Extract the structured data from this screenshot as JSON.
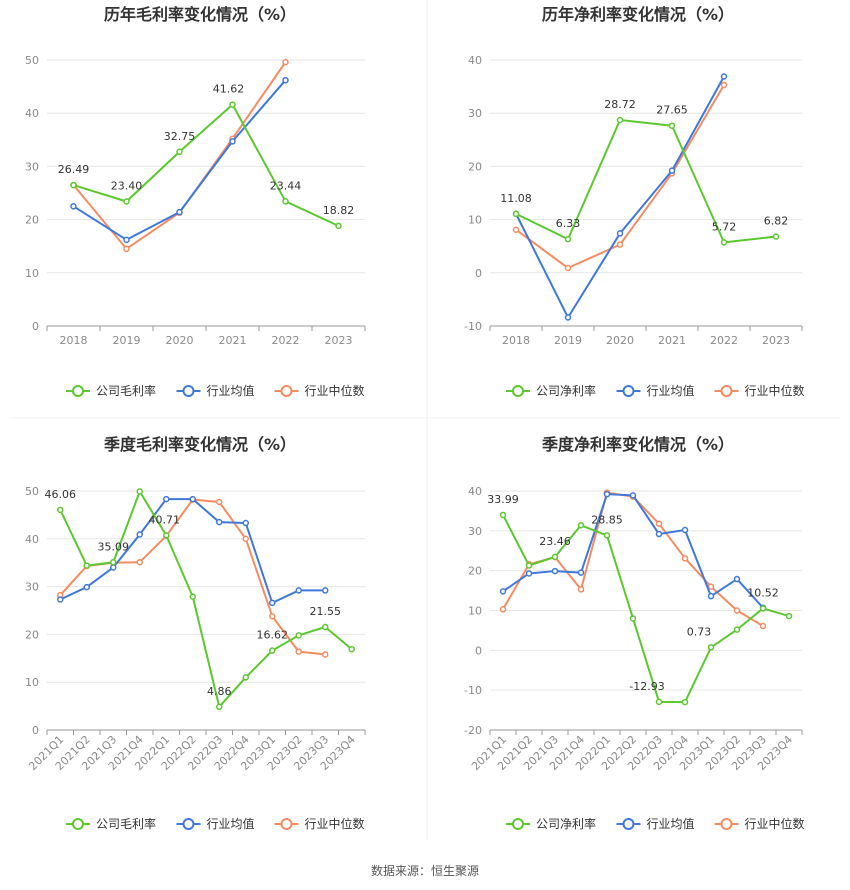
{
  "colors": {
    "company": "#5cc72f",
    "industry_avg": "#3f78d9",
    "industry_median": "#f58b61",
    "grid": "#e6e6e6",
    "axis": "#999999",
    "divider": "#e8e8e8"
  },
  "source": "数据来源：恒生聚源",
  "chart_data": [
    {
      "type": "line",
      "title": "历年毛利率变化情况（%）",
      "categories": [
        "2018",
        "2019",
        "2020",
        "2021",
        "2022",
        "2023"
      ],
      "ylim": [
        0,
        50
      ],
      "yticks": [
        0,
        10,
        20,
        30,
        40,
        50
      ],
      "legend": "bottom",
      "series": [
        {
          "name": "公司毛利率",
          "values": [
            26.49,
            23.4,
            32.75,
            41.62,
            23.44,
            18.82
          ]
        },
        {
          "name": "行业均值",
          "values": [
            22.5,
            16.2,
            21.4,
            34.7,
            46.2,
            null
          ]
        },
        {
          "name": "行业中位数",
          "values": [
            26.5,
            14.5,
            21.3,
            35.2,
            49.6,
            null
          ]
        }
      ],
      "data_labels": [
        {
          "i": 0,
          "text": "26.49"
        },
        {
          "i": 1,
          "text": "23.40"
        },
        {
          "i": 2,
          "text": "32.75"
        },
        {
          "i": 3,
          "text": "41.62"
        },
        {
          "i": 4,
          "text": "23.44"
        },
        {
          "i": 5,
          "text": "18.82"
        }
      ]
    },
    {
      "type": "line",
      "title": "历年净利率变化情况（%）",
      "categories": [
        "2018",
        "2019",
        "2020",
        "2021",
        "2022",
        "2023"
      ],
      "ylim": [
        -10,
        40
      ],
      "yticks": [
        -10,
        0,
        10,
        20,
        30,
        40
      ],
      "legend": "bottom",
      "series": [
        {
          "name": "公司净利率",
          "values": [
            11.08,
            6.33,
            28.72,
            27.65,
            5.72,
            6.82
          ]
        },
        {
          "name": "行业均值",
          "values": [
            11.1,
            -8.4,
            7.4,
            19.2,
            36.9,
            null
          ]
        },
        {
          "name": "行业中位数",
          "values": [
            8.1,
            0.9,
            5.3,
            18.7,
            35.3,
            null
          ]
        }
      ],
      "data_labels": [
        {
          "i": 0,
          "text": "11.08"
        },
        {
          "i": 1,
          "text": "6.33"
        },
        {
          "i": 2,
          "text": "28.72"
        },
        {
          "i": 3,
          "text": "27.65"
        },
        {
          "i": 4,
          "text": "5.72"
        },
        {
          "i": 5,
          "text": "6.82"
        }
      ]
    },
    {
      "type": "line",
      "title": "季度毛利率变化情况（%）",
      "categories": [
        "2021Q1",
        "2021Q2",
        "2021Q3",
        "2021Q4",
        "2022Q1",
        "2022Q2",
        "2022Q3",
        "2022Q4",
        "2023Q1",
        "2023Q2",
        "2023Q3",
        "2023Q4"
      ],
      "ylim": [
        0,
        50
      ],
      "yticks": [
        0,
        10,
        20,
        30,
        40,
        50
      ],
      "legend": "bottom",
      "series": [
        {
          "name": "公司毛利率",
          "values": [
            46.06,
            34.4,
            35.09,
            49.9,
            40.71,
            27.9,
            4.86,
            11.0,
            16.62,
            19.8,
            21.55,
            16.9
          ]
        },
        {
          "name": "行业均值",
          "values": [
            27.3,
            29.9,
            34.0,
            40.9,
            48.3,
            48.3,
            43.5,
            43.3,
            26.6,
            29.2,
            29.2,
            null
          ]
        },
        {
          "name": "行业中位数",
          "values": [
            28.2,
            34.3,
            35.0,
            35.1,
            40.6,
            48.2,
            47.7,
            40.0,
            23.8,
            16.4,
            15.8,
            null
          ]
        }
      ],
      "data_labels": [
        {
          "i": 0,
          "text": "46.06"
        },
        {
          "i": 2,
          "text": "35.09"
        },
        {
          "i": 4,
          "text": "40.71"
        },
        {
          "i": 6,
          "text": "4.86"
        },
        {
          "i": 8,
          "text": "16.62"
        },
        {
          "i": 10,
          "text": "21.55"
        }
      ]
    },
    {
      "type": "line",
      "title": "季度净利率变化情况（%）",
      "categories": [
        "2021Q1",
        "2021Q2",
        "2021Q3",
        "2021Q4",
        "2022Q1",
        "2022Q2",
        "2022Q3",
        "2022Q4",
        "2023Q1",
        "2023Q2",
        "2023Q3",
        "2023Q4"
      ],
      "ylim": [
        -20,
        40
      ],
      "yticks": [
        -20,
        -10,
        0,
        10,
        20,
        30,
        40
      ],
      "legend": "bottom",
      "series": [
        {
          "name": "公司净利率",
          "values": [
            33.99,
            21.3,
            23.46,
            31.4,
            28.85,
            8.0,
            -12.93,
            -13.0,
            0.73,
            5.2,
            10.52,
            8.6
          ]
        },
        {
          "name": "行业均值",
          "values": [
            14.8,
            19.3,
            19.9,
            19.5,
            39.2,
            38.9,
            29.2,
            30.2,
            13.6,
            17.9,
            10.7,
            null
          ]
        },
        {
          "name": "行业中位数",
          "values": [
            10.3,
            21.6,
            23.4,
            15.3,
            39.6,
            38.6,
            31.8,
            23.1,
            16.0,
            10.0,
            6.1,
            null
          ]
        }
      ],
      "data_labels": [
        {
          "i": 0,
          "text": "33.99"
        },
        {
          "i": 2,
          "text": "23.46"
        },
        {
          "i": 4,
          "text": "28.85"
        },
        {
          "i": 6,
          "text": "-12.93"
        },
        {
          "i": 8,
          "text": "0.73"
        },
        {
          "i": 10,
          "text": "10.52"
        }
      ]
    }
  ]
}
